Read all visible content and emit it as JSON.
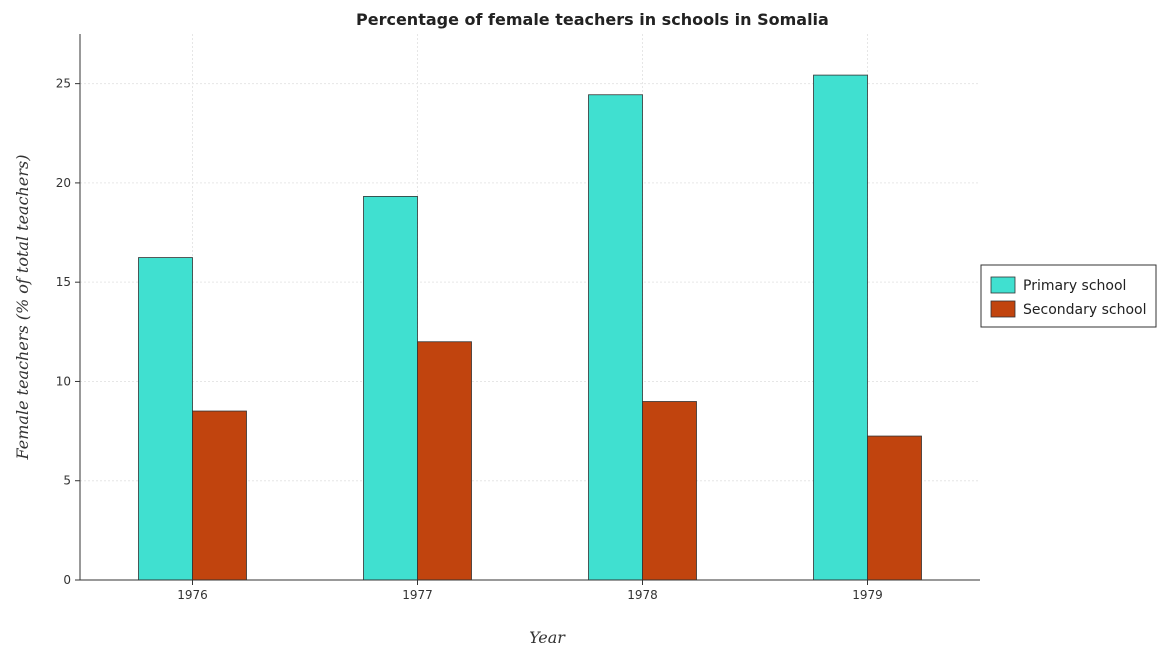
{
  "chart_data": {
    "type": "bar",
    "title": "Percentage of female teachers in schools in Somalia",
    "xlabel": "Year",
    "ylabel": "Female teachers (% of total teachers)",
    "categories": [
      "1976",
      "1977",
      "1978",
      "1979"
    ],
    "series": [
      {
        "name": "Primary school",
        "values": [
          16.24,
          19.32,
          24.44,
          25.43
        ],
        "color": "#40e0d0"
      },
      {
        "name": "Secondary school",
        "values": [
          8.51,
          12.0,
          8.99,
          7.25
        ],
        "color": "#c1440e"
      }
    ],
    "ylim": [
      0,
      27.5
    ],
    "yticks": [
      0,
      5,
      10,
      15,
      20,
      25
    ],
    "grid": true,
    "legend_position": "right"
  }
}
